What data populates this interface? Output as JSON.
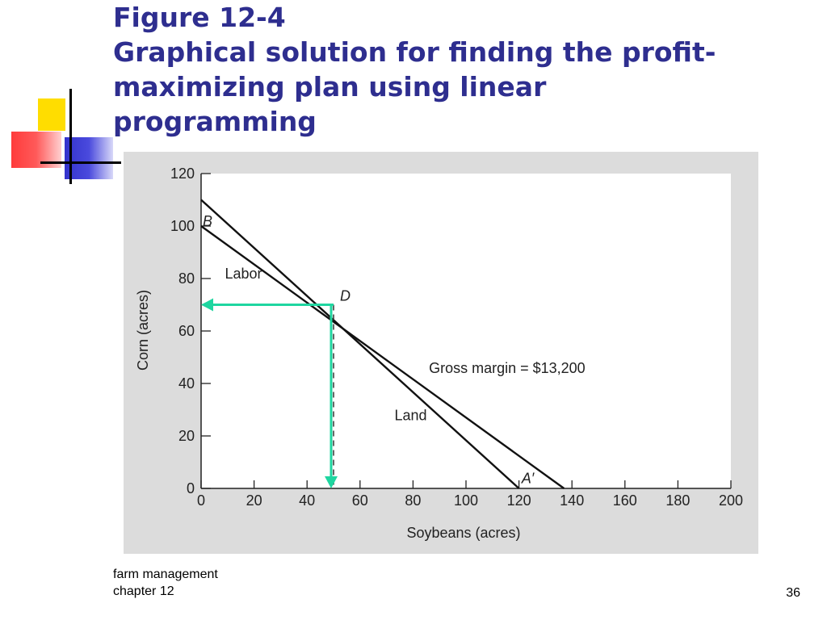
{
  "slide": {
    "title_line1": "Figure 12-4",
    "title_line2": "Graphical solution for finding the profit-",
    "title_line3": "maximizing plan using linear",
    "title_line4": "programming",
    "footer_line1": "farm management",
    "footer_line2": "chapter 12",
    "page_number": "36"
  },
  "colors": {
    "title": "#2e2e8f",
    "arrow": "#1fd6a0",
    "deco_yellow": "#ffdd00",
    "deco_blue": "#3333cc",
    "deco_red": "#ff3b3b",
    "chart_bg": "#dcdcdc"
  },
  "chart_data": {
    "type": "line",
    "xlabel": "Soybeans (acres)",
    "ylabel": "Corn (acres)",
    "xlim": [
      0,
      200
    ],
    "ylim": [
      0,
      120
    ],
    "x_ticks": [
      0,
      20,
      40,
      60,
      80,
      100,
      120,
      140,
      160,
      180,
      200
    ],
    "y_ticks": [
      0,
      20,
      40,
      60,
      80,
      100,
      120
    ],
    "grid": false,
    "series": [
      {
        "name": "Labor",
        "points": [
          [
            0,
            100
          ],
          [
            137,
            0
          ]
        ]
      },
      {
        "name": "Land",
        "points": [
          [
            0,
            110
          ],
          [
            120,
            0
          ]
        ]
      }
    ],
    "annotations": [
      {
        "text": "B",
        "x": 0,
        "y": 100
      },
      {
        "text": "Labor",
        "x": 9,
        "y": 80
      },
      {
        "text": "D",
        "x": 50,
        "y": 70
      },
      {
        "text": "Gross margin = $13,200",
        "x": 86,
        "y": 44
      },
      {
        "text": "Land",
        "x": 73,
        "y": 26
      },
      {
        "text": "A′",
        "x": 121,
        "y": 2
      }
    ],
    "optimum": {
      "x": 50,
      "y": 70
    }
  }
}
